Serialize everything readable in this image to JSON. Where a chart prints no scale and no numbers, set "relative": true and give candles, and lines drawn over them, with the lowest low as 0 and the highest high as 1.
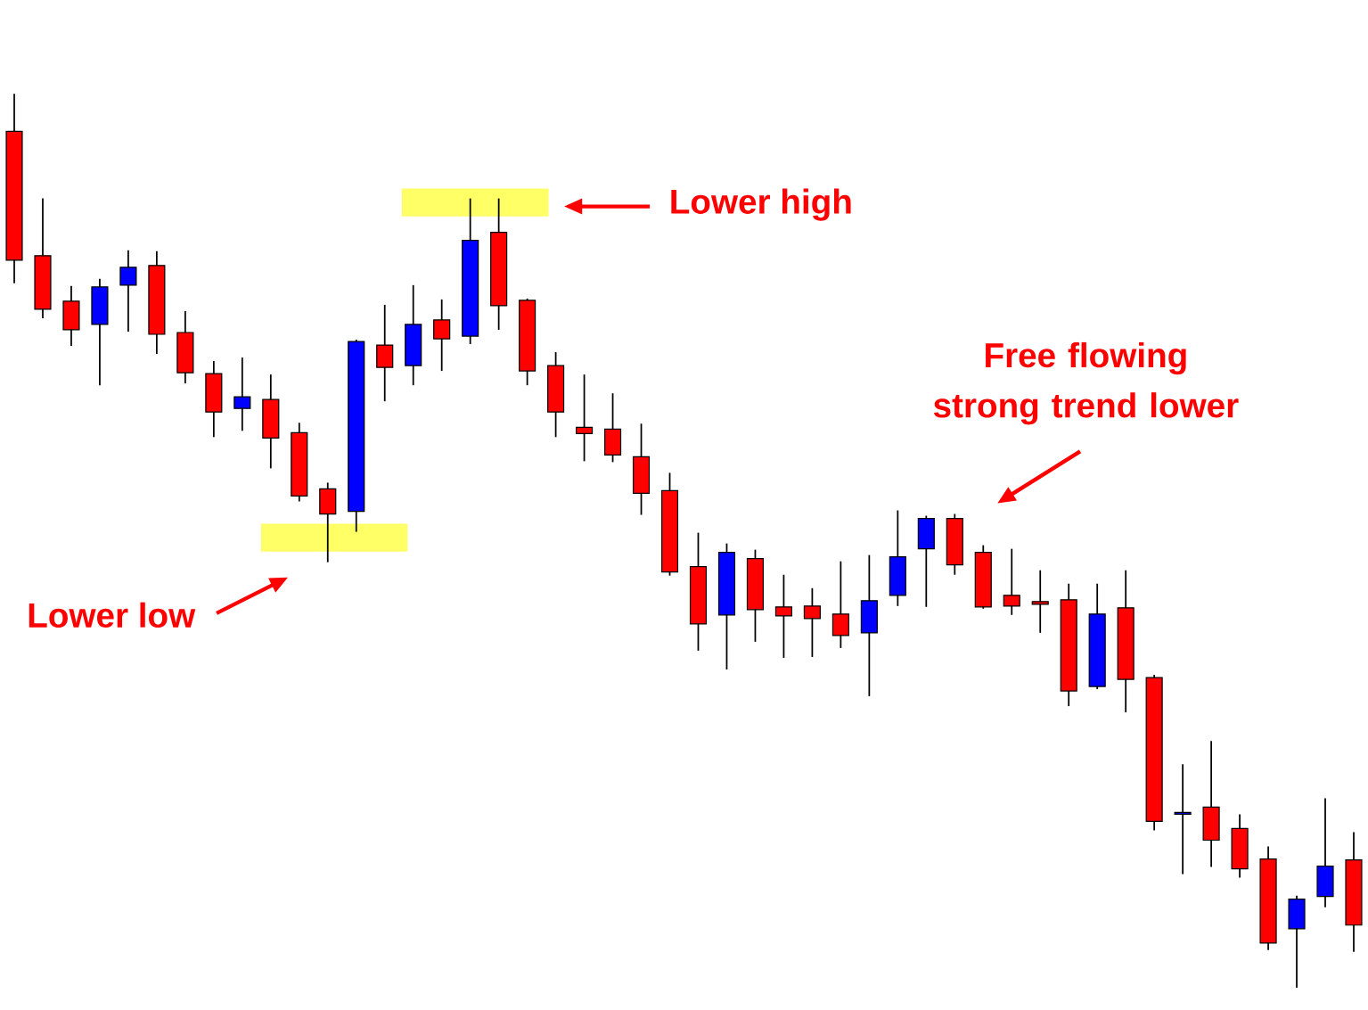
{
  "chart_data": {
    "type": "candlestick",
    "relative": true,
    "categories": [
      null,
      null,
      null,
      null,
      null,
      null,
      null,
      null,
      null,
      null,
      null,
      null,
      null,
      null,
      null,
      null,
      null,
      null,
      null,
      null,
      null,
      null,
      null,
      null,
      null,
      null,
      null,
      null,
      null,
      null,
      null,
      null,
      null,
      null,
      null,
      null,
      null,
      null,
      null,
      null,
      null,
      null,
      null,
      null,
      null,
      null,
      null,
      null
    ],
    "ohlc": [
      [
        0.958,
        1.0,
        0.788,
        0.814
      ],
      [
        0.819,
        0.883,
        0.749,
        0.759
      ],
      [
        0.768,
        0.785,
        0.718,
        0.736
      ],
      [
        0.742,
        0.793,
        0.674,
        0.784
      ],
      [
        0.786,
        0.825,
        0.734,
        0.806
      ],
      [
        0.808,
        0.824,
        0.709,
        0.731
      ],
      [
        0.733,
        0.757,
        0.676,
        0.688
      ],
      [
        0.687,
        0.701,
        0.616,
        0.644
      ],
      [
        0.648,
        0.705,
        0.623,
        0.661
      ],
      [
        0.658,
        0.686,
        0.581,
        0.615
      ],
      [
        0.621,
        0.632,
        0.544,
        0.55
      ],
      [
        0.558,
        0.565,
        0.476,
        0.53
      ],
      [
        0.533,
        0.725,
        0.51,
        0.723
      ],
      [
        0.719,
        0.764,
        0.656,
        0.694
      ],
      [
        0.696,
        0.786,
        0.674,
        0.742
      ],
      [
        0.747,
        0.77,
        0.69,
        0.726
      ],
      [
        0.729,
        0.883,
        0.72,
        0.836
      ],
      [
        0.845,
        0.883,
        0.736,
        0.763
      ],
      [
        0.769,
        0.771,
        0.674,
        0.69
      ],
      [
        0.696,
        0.711,
        0.616,
        0.644
      ],
      [
        0.627,
        0.686,
        0.589,
        0.62
      ],
      [
        0.625,
        0.665,
        0.588,
        0.596
      ],
      [
        0.594,
        0.631,
        0.529,
        0.553
      ],
      [
        0.556,
        0.576,
        0.461,
        0.465
      ],
      [
        0.471,
        0.509,
        0.377,
        0.407
      ],
      [
        0.417,
        0.497,
        0.356,
        0.487
      ],
      [
        0.48,
        0.49,
        0.387,
        0.423
      ],
      [
        0.426,
        0.462,
        0.369,
        0.416
      ],
      [
        0.427,
        0.447,
        0.37,
        0.413
      ],
      [
        0.418,
        0.477,
        0.38,
        0.394
      ],
      [
        0.397,
        0.484,
        0.326,
        0.433
      ],
      [
        0.439,
        0.534,
        0.427,
        0.482
      ],
      [
        0.491,
        0.528,
        0.426,
        0.525
      ],
      [
        0.525,
        0.53,
        0.462,
        0.473
      ],
      [
        0.487,
        0.495,
        0.424,
        0.426
      ],
      [
        0.439,
        0.491,
        0.417,
        0.427
      ],
      [
        0.432,
        0.467,
        0.397,
        0.429
      ],
      [
        0.434,
        0.452,
        0.315,
        0.332
      ],
      [
        0.337,
        0.452,
        0.334,
        0.418
      ],
      [
        0.425,
        0.467,
        0.308,
        0.345
      ],
      [
        0.347,
        0.35,
        0.176,
        0.186
      ],
      [
        0.194,
        0.25,
        0.127,
        0.196
      ],
      [
        0.202,
        0.276,
        0.135,
        0.165
      ],
      [
        0.178,
        0.194,
        0.123,
        0.133
      ],
      [
        0.144,
        0.158,
        0.042,
        0.05
      ],
      [
        0.066,
        0.103,
        0.0,
        0.099
      ],
      [
        0.102,
        0.212,
        0.09,
        0.136
      ],
      [
        0.143,
        0.174,
        0.04,
        0.07
      ]
    ],
    "colors": [
      "#ff0000",
      "#ff0000",
      "#ff0000",
      "#0000ff",
      "#0000ff",
      "#ff0000",
      "#ff0000",
      "#ff0000",
      "#0000ff",
      "#ff0000",
      "#ff0000",
      "#ff0000",
      "#0000ff",
      "#ff0000",
      "#0000ff",
      "#ff0000",
      "#0000ff",
      "#ff0000",
      "#ff0000",
      "#ff0000",
      "#ff0000",
      "#ff0000",
      "#ff0000",
      "#ff0000",
      "#ff0000",
      "#0000ff",
      "#ff0000",
      "#ff0000",
      "#ff0000",
      "#ff0000",
      "#0000ff",
      "#0000ff",
      "#0000ff",
      "#ff0000",
      "#ff0000",
      "#ff0000",
      "#ff0000",
      "#ff0000",
      "#0000ff",
      "#ff0000",
      "#ff0000",
      "#0000ff",
      "#ff0000",
      "#ff0000",
      "#ff0000",
      "#0000ff",
      "#0000ff",
      "#ff0000"
    ],
    "bands": [
      {
        "axis": "y",
        "from": 0.863,
        "to": 0.894,
        "color": "#ffff66"
      },
      {
        "axis": "y",
        "from": 0.488,
        "to": 0.519,
        "color": "#ffff66"
      }
    ],
    "annotations": [
      "Lower high",
      "Lower low",
      "Free flowing strong trend lower"
    ]
  }
}
